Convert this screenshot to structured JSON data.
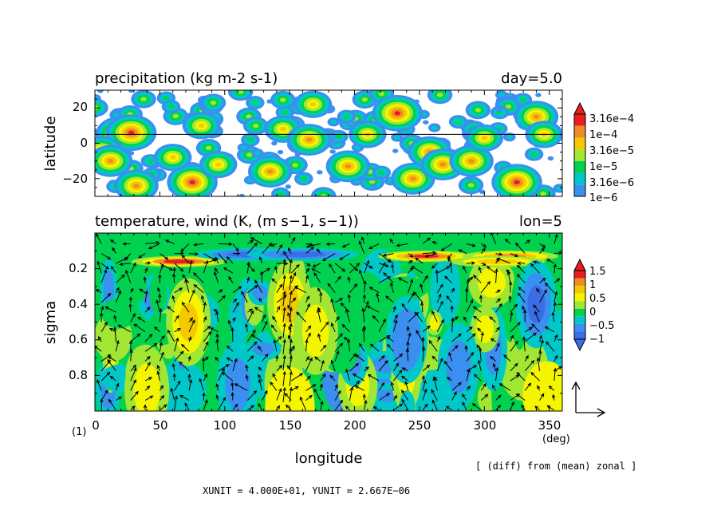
{
  "chart_data": [
    {
      "type": "heatmap",
      "title": "precipitation (kg m-2 s-1)",
      "title_right": "day=5.0",
      "ylabel": "latitude",
      "xlim": [
        0,
        360
      ],
      "ylim": [
        -30,
        30
      ],
      "yticks": [
        -20,
        0,
        20
      ],
      "ytick_labels": [
        "−20",
        "0",
        "20"
      ],
      "reference_line_latitude": 5,
      "log_scale": true,
      "colorbar_labels": [
        "3.16e−4",
        "1e−4",
        "3.16e−5",
        "1e−5",
        "3.16e−6",
        "1e−6"
      ],
      "colors": [
        "#3b8ff0",
        "#00c8c8",
        "#00d250",
        "#a0e632",
        "#f5f500",
        "#f5c800",
        "#f08c28",
        "#e61e1e"
      ],
      "hotspots": [
        {
          "lon": 20,
          "lat": 5,
          "level": 7
        },
        {
          "lon": 28,
          "lat": 6,
          "level": 7
        },
        {
          "lon": 5,
          "lat": -5,
          "level": 6
        },
        {
          "lon": 12,
          "lat": -10,
          "level": 6
        },
        {
          "lon": 32,
          "lat": -24,
          "level": 6
        },
        {
          "lon": 75,
          "lat": -22,
          "level": 7
        },
        {
          "lon": 82,
          "lat": 10,
          "level": 5
        },
        {
          "lon": 95,
          "lat": -12,
          "level": 5
        },
        {
          "lon": 135,
          "lat": -16,
          "level": 6
        },
        {
          "lon": 145,
          "lat": 8,
          "level": 5
        },
        {
          "lon": 165,
          "lat": 2,
          "level": 6
        },
        {
          "lon": 168,
          "lat": 22,
          "level": 5
        },
        {
          "lon": 195,
          "lat": -13,
          "level": 6
        },
        {
          "lon": 210,
          "lat": 5,
          "level": 5
        },
        {
          "lon": 233,
          "lat": 17,
          "level": 7
        },
        {
          "lon": 245,
          "lat": -20,
          "level": 6
        },
        {
          "lon": 258,
          "lat": -5,
          "level": 6
        },
        {
          "lon": 268,
          "lat": -12,
          "level": 6
        },
        {
          "lon": 290,
          "lat": -10,
          "level": 6
        },
        {
          "lon": 300,
          "lat": 3,
          "level": 5
        },
        {
          "lon": 325,
          "lat": -22,
          "level": 7
        },
        {
          "lon": 340,
          "lat": 15,
          "level": 6
        },
        {
          "lon": 346,
          "lat": 5,
          "level": 5
        },
        {
          "lon": 60,
          "lat": -8,
          "level": 5
        }
      ]
    },
    {
      "type": "heatmap",
      "title": "temperature, wind (K, (m s−1, s−1))",
      "title_right": "lon=5",
      "xlabel": "longitude",
      "x_unit_label": "(deg)",
      "ylabel": "sigma",
      "xlim": [
        0,
        360
      ],
      "ylim": [
        1.0,
        0.0
      ],
      "xticks": [
        0,
        50,
        100,
        150,
        200,
        250,
        300,
        350
      ],
      "yticks": [
        0.2,
        0.4,
        0.6,
        0.8
      ],
      "colorbar_labels": [
        "1.5",
        "1",
        "0.5",
        "0",
        "−0.5",
        "−1"
      ],
      "colors": [
        "#3b6de6",
        "#3b8ff0",
        "#00c8c8",
        "#00d250",
        "#a0e632",
        "#f5f500",
        "#f5c800",
        "#f08c28",
        "#e61e1e"
      ],
      "vector_reference_label": "(1)",
      "warm_features": [
        {
          "lon": 72,
          "sigma": 0.5,
          "value": 0.9
        },
        {
          "lon": 40,
          "sigma": 0.88,
          "value": 0.8
        },
        {
          "lon": 150,
          "sigma": 0.4,
          "value": 0.9
        },
        {
          "lon": 170,
          "sigma": 0.55,
          "value": 0.8
        },
        {
          "lon": 255,
          "sigma": 0.13,
          "value": 1.6
        },
        {
          "lon": 320,
          "sigma": 0.13,
          "value": 1.4
        },
        {
          "lon": 65,
          "sigma": 0.16,
          "value": 1.5
        },
        {
          "lon": 310,
          "sigma": 0.16,
          "value": 1.0
        }
      ],
      "cold_features": [
        {
          "lon": 120,
          "sigma": 0.12,
          "value": -1.2
        },
        {
          "lon": 160,
          "sigma": 0.12,
          "value": -1.0
        },
        {
          "lon": 240,
          "sigma": 0.6,
          "value": -0.9
        },
        {
          "lon": 340,
          "sigma": 0.4,
          "value": -1.1
        },
        {
          "lon": 110,
          "sigma": 0.85,
          "value": -0.7
        },
        {
          "lon": 280,
          "sigma": 0.75,
          "value": -0.6
        }
      ]
    }
  ],
  "footer": {
    "units": "XUNIT = 4.000E+01, YUNIT = 2.667E−06",
    "note": "[ (diff) from (mean) zonal ]"
  }
}
